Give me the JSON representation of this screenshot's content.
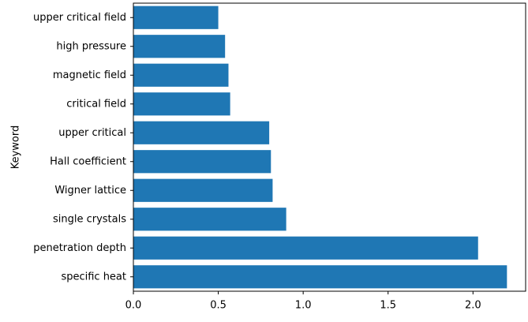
{
  "chart_data": {
    "type": "bar",
    "orientation": "horizontal",
    "categories": [
      "specific heat",
      "penetration depth",
      "single crystals",
      "Wigner lattice",
      "Hall coefficient",
      "upper critical",
      "critical field",
      "magnetic field",
      "high pressure",
      "upper critical field"
    ],
    "values": [
      2.2,
      2.03,
      0.9,
      0.82,
      0.81,
      0.8,
      0.57,
      0.56,
      0.54,
      0.5
    ],
    "title": "",
    "xlabel": "",
    "ylabel": "Keyword",
    "xlim": [
      0,
      2.31
    ],
    "xticks": [
      0.0,
      0.5,
      1.0,
      1.5,
      2.0
    ],
    "xtick_labels": [
      "0.0",
      "0.5",
      "1.0",
      "1.5",
      "2.0"
    ],
    "bar_color": "#1f77b4",
    "grid": false,
    "legend": "none"
  }
}
